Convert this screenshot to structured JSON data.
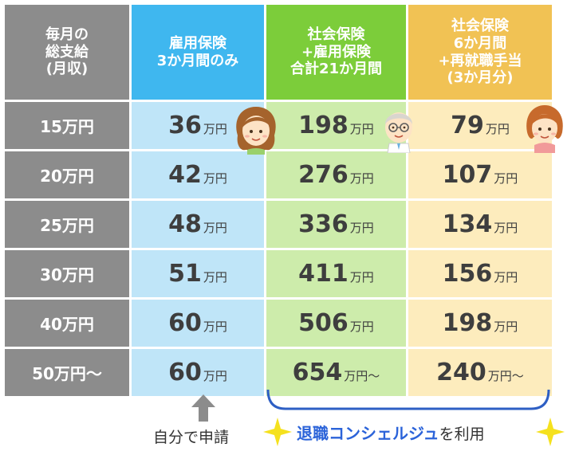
{
  "table": {
    "header": {
      "label_lines": [
        "毎月の",
        "総支給",
        "(月収)"
      ],
      "col_a_lines": [
        "雇用保険",
        "3か月間のみ"
      ],
      "col_b_lines": [
        "社会保険",
        "+雇用保険",
        "合計21か月間"
      ],
      "col_c_lines": [
        "社会保険",
        "6か月間",
        "+再就職手当",
        "(3か月分)"
      ]
    },
    "rows": [
      {
        "label": "15万円",
        "a": "36",
        "a_unit": "万円",
        "b": "198",
        "b_unit": "万円",
        "c": "79",
        "c_unit": "万円"
      },
      {
        "label": "20万円",
        "a": "42",
        "a_unit": "万円",
        "b": "276",
        "b_unit": "万円",
        "c": "107",
        "c_unit": "万円"
      },
      {
        "label": "25万円",
        "a": "48",
        "a_unit": "万円",
        "b": "336",
        "b_unit": "万円",
        "c": "134",
        "c_unit": "万円"
      },
      {
        "label": "30万円",
        "a": "51",
        "a_unit": "万円",
        "b": "411",
        "b_unit": "万円",
        "c": "156",
        "c_unit": "万円"
      },
      {
        "label": "40万円",
        "a": "60",
        "a_unit": "万円",
        "b": "506",
        "b_unit": "万円",
        "c": "198",
        "c_unit": "万円"
      },
      {
        "label": "50万円～",
        "a": "60",
        "a_unit": "万円",
        "b": "654",
        "b_unit": "万円～",
        "c": "240",
        "c_unit": "万円～"
      }
    ]
  },
  "footer": {
    "self_apply": "自分で申請",
    "concierge_strong": "退職コンシェルジュ",
    "concierge_rest": "を利用"
  },
  "colors": {
    "header_label": "#8c8c8c",
    "header_a": "#3fb7ef",
    "header_b": "#7ccd3a",
    "header_c": "#f1c254",
    "cell_a": "#bfe5f8",
    "cell_b": "#cdecab",
    "cell_c": "#fdecbd",
    "accent_text": "#2b63d9",
    "star": "#f5e11e"
  },
  "icons": {
    "arrow": "up-arrow-icon",
    "star": "sparkle-star-icon",
    "characters": [
      "woman-long-hair-icon",
      "man-glasses-icon",
      "woman-short-hair-icon"
    ]
  }
}
